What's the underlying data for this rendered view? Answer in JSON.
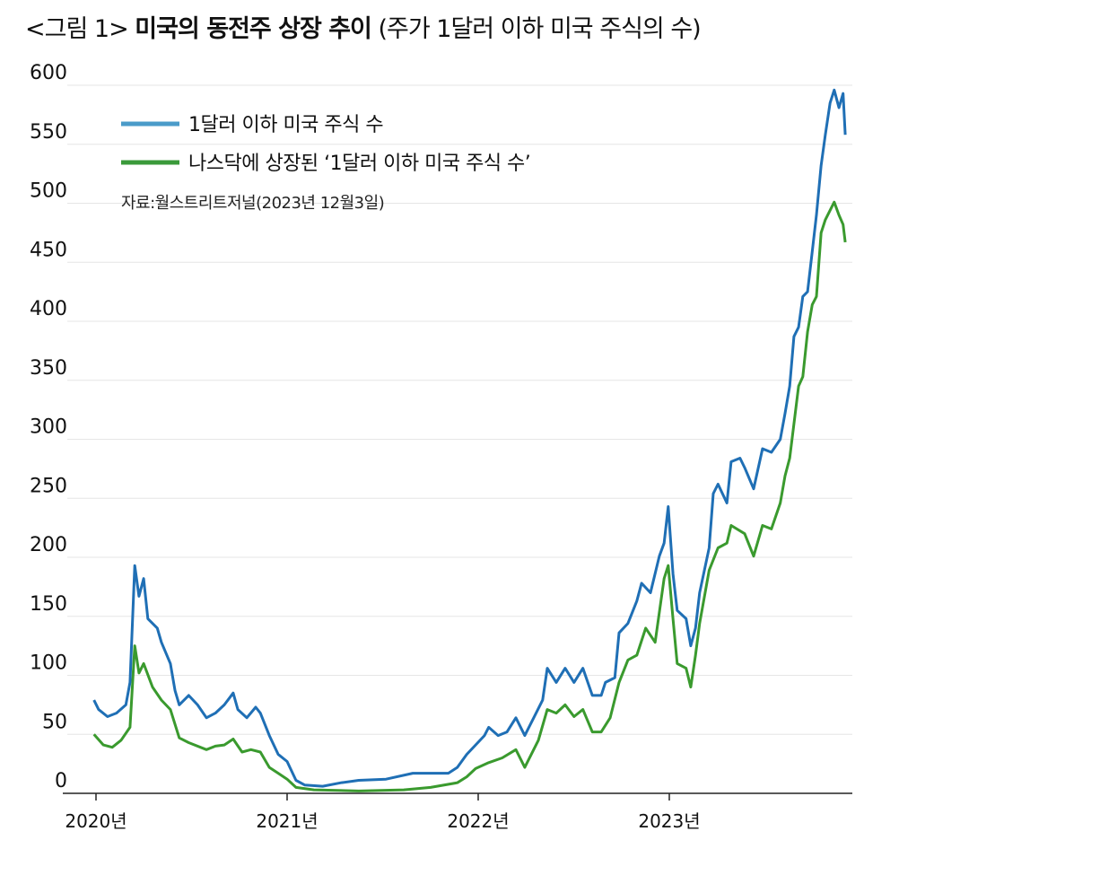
{
  "title": {
    "prefix": "<그림 1> ",
    "main": "미국의 동전주 상장 추이",
    "suffix": " (주가 1달러 이하 미국 주식의 수)"
  },
  "chart_data": {
    "type": "line",
    "title": "미국의 동전주 상장 추이",
    "subtitle": "(주가 1달러 이하 미국 주식의 수)",
    "source": "자료:월스트리트저널(2023년 12월3일)",
    "xlabel": "",
    "ylabel": "",
    "ylim": [
      0,
      600
    ],
    "yticks": [
      0,
      50,
      100,
      150,
      200,
      250,
      300,
      350,
      400,
      450,
      500,
      550,
      600
    ],
    "xticks": [
      {
        "value": "2020-01-01",
        "label": "2020년"
      },
      {
        "value": "2021-01-01",
        "label": "2021년"
      },
      {
        "value": "2022-01-01",
        "label": "2022년"
      },
      {
        "value": "2023-01-01",
        "label": "2023년"
      }
    ],
    "grid": "horizontal",
    "legend_placement": "top-left",
    "series": [
      {
        "name": "1달러 이하 미국 주식 수",
        "color": "#1f6fb5",
        "legend_color": "#4a9bc9",
        "points": [
          [
            "2019-12-28",
            79
          ],
          [
            "2020-01-06",
            71
          ],
          [
            "2020-01-23",
            65
          ],
          [
            "2020-02-09",
            68
          ],
          [
            "2020-02-27",
            75
          ],
          [
            "2020-03-06",
            94
          ],
          [
            "2020-03-15",
            193
          ],
          [
            "2020-03-23",
            167
          ],
          [
            "2020-04-01",
            182
          ],
          [
            "2020-04-09",
            148
          ],
          [
            "2020-04-27",
            140
          ],
          [
            "2020-05-05",
            128
          ],
          [
            "2020-05-22",
            110
          ],
          [
            "2020-05-31",
            87
          ],
          [
            "2020-06-08",
            75
          ],
          [
            "2020-06-26",
            83
          ],
          [
            "2020-07-13",
            75
          ],
          [
            "2020-07-30",
            64
          ],
          [
            "2020-08-16",
            68
          ],
          [
            "2020-09-02",
            75
          ],
          [
            "2020-09-19",
            85
          ],
          [
            "2020-09-28",
            71
          ],
          [
            "2020-10-15",
            64
          ],
          [
            "2020-11-01",
            73
          ],
          [
            "2020-11-10",
            68
          ],
          [
            "2020-11-27",
            49
          ],
          [
            "2020-12-14",
            33
          ],
          [
            "2021-01-01",
            27
          ],
          [
            "2021-01-18",
            11
          ],
          [
            "2021-02-04",
            7
          ],
          [
            "2021-03-10",
            6
          ],
          [
            "2021-04-14",
            9
          ],
          [
            "2021-05-18",
            11
          ],
          [
            "2021-07-09",
            12
          ],
          [
            "2021-08-29",
            17
          ],
          [
            "2021-11-05",
            17
          ],
          [
            "2021-11-22",
            22
          ],
          [
            "2021-12-10",
            33
          ],
          [
            "2021-12-27",
            41
          ],
          [
            "2022-01-13",
            49
          ],
          [
            "2022-01-21",
            56
          ],
          [
            "2022-02-08",
            49
          ],
          [
            "2022-02-25",
            52
          ],
          [
            "2022-03-14",
            64
          ],
          [
            "2022-03-31",
            49
          ],
          [
            "2022-04-17",
            64
          ],
          [
            "2022-05-04",
            79
          ],
          [
            "2022-05-13",
            106
          ],
          [
            "2022-05-30",
            94
          ],
          [
            "2022-06-16",
            106
          ],
          [
            "2022-07-03",
            94
          ],
          [
            "2022-07-20",
            106
          ],
          [
            "2022-08-07",
            83
          ],
          [
            "2022-08-24",
            83
          ],
          [
            "2022-09-01",
            94
          ],
          [
            "2022-09-19",
            98
          ],
          [
            "2022-09-27",
            136
          ],
          [
            "2022-10-14",
            144
          ],
          [
            "2022-10-31",
            163
          ],
          [
            "2022-11-09",
            178
          ],
          [
            "2022-11-26",
            170
          ],
          [
            "2022-12-13",
            201
          ],
          [
            "2022-12-22",
            212
          ],
          [
            "2022-12-30",
            243
          ],
          [
            "2023-01-08",
            186
          ],
          [
            "2023-01-16",
            155
          ],
          [
            "2023-02-02",
            148
          ],
          [
            "2023-02-11",
            125
          ],
          [
            "2023-02-20",
            140
          ],
          [
            "2023-02-28",
            170
          ],
          [
            "2023-03-18",
            208
          ],
          [
            "2023-03-26",
            254
          ],
          [
            "2023-04-04",
            262
          ],
          [
            "2023-04-21",
            246
          ],
          [
            "2023-04-29",
            281
          ],
          [
            "2023-05-16",
            284
          ],
          [
            "2023-05-25",
            276
          ],
          [
            "2023-06-11",
            258
          ],
          [
            "2023-06-28",
            292
          ],
          [
            "2023-07-15",
            289
          ],
          [
            "2023-08-01",
            300
          ],
          [
            "2023-08-10",
            322
          ],
          [
            "2023-08-19",
            345
          ],
          [
            "2023-08-27",
            387
          ],
          [
            "2023-09-05",
            395
          ],
          [
            "2023-09-13",
            421
          ],
          [
            "2023-09-22",
            425
          ],
          [
            "2023-10-01",
            459
          ],
          [
            "2023-10-09",
            490
          ],
          [
            "2023-10-18",
            532
          ],
          [
            "2023-10-26",
            558
          ],
          [
            "2023-11-04",
            585
          ],
          [
            "2023-11-12",
            596
          ],
          [
            "2023-11-21",
            581
          ],
          [
            "2023-11-29",
            593
          ],
          [
            "2023-12-03",
            558
          ]
        ]
      },
      {
        "name": "나스닥에 상장된 ‘1달러 이하 미국 주식 수’",
        "color": "#3a9a2e",
        "legend_color": "#3a9a3a",
        "points": [
          [
            "2019-12-28",
            50
          ],
          [
            "2020-01-15",
            41
          ],
          [
            "2020-02-01",
            39
          ],
          [
            "2020-02-18",
            45
          ],
          [
            "2020-03-06",
            56
          ],
          [
            "2020-03-15",
            125
          ],
          [
            "2020-03-23",
            102
          ],
          [
            "2020-04-01",
            110
          ],
          [
            "2020-04-18",
            90
          ],
          [
            "2020-05-05",
            79
          ],
          [
            "2020-05-22",
            71
          ],
          [
            "2020-06-08",
            47
          ],
          [
            "2020-06-26",
            43
          ],
          [
            "2020-07-30",
            37
          ],
          [
            "2020-08-16",
            40
          ],
          [
            "2020-09-02",
            41
          ],
          [
            "2020-09-19",
            46
          ],
          [
            "2020-10-06",
            35
          ],
          [
            "2020-10-23",
            37
          ],
          [
            "2020-11-10",
            35
          ],
          [
            "2020-11-27",
            22
          ],
          [
            "2020-12-14",
            17
          ],
          [
            "2021-01-01",
            12
          ],
          [
            "2021-01-18",
            5
          ],
          [
            "2021-02-21",
            3
          ],
          [
            "2021-05-18",
            2
          ],
          [
            "2021-08-12",
            3
          ],
          [
            "2021-10-02",
            5
          ],
          [
            "2021-11-22",
            9
          ],
          [
            "2021-12-10",
            14
          ],
          [
            "2021-12-27",
            21
          ],
          [
            "2022-01-21",
            26
          ],
          [
            "2022-02-16",
            30
          ],
          [
            "2022-03-14",
            37
          ],
          [
            "2022-03-31",
            22
          ],
          [
            "2022-04-26",
            45
          ],
          [
            "2022-05-13",
            71
          ],
          [
            "2022-05-30",
            68
          ],
          [
            "2022-06-16",
            75
          ],
          [
            "2022-07-03",
            65
          ],
          [
            "2022-07-20",
            71
          ],
          [
            "2022-08-07",
            52
          ],
          [
            "2022-08-24",
            52
          ],
          [
            "2022-09-10",
            64
          ],
          [
            "2022-09-27",
            94
          ],
          [
            "2022-10-14",
            113
          ],
          [
            "2022-10-31",
            117
          ],
          [
            "2022-11-17",
            140
          ],
          [
            "2022-12-05",
            128
          ],
          [
            "2022-12-22",
            182
          ],
          [
            "2022-12-30",
            193
          ],
          [
            "2023-01-08",
            148
          ],
          [
            "2023-01-16",
            110
          ],
          [
            "2023-02-02",
            106
          ],
          [
            "2023-02-11",
            90
          ],
          [
            "2023-02-20",
            117
          ],
          [
            "2023-02-28",
            144
          ],
          [
            "2023-03-18",
            189
          ],
          [
            "2023-04-04",
            208
          ],
          [
            "2023-04-21",
            212
          ],
          [
            "2023-04-29",
            227
          ],
          [
            "2023-05-25",
            220
          ],
          [
            "2023-06-11",
            201
          ],
          [
            "2023-06-28",
            227
          ],
          [
            "2023-07-15",
            224
          ],
          [
            "2023-08-01",
            246
          ],
          [
            "2023-08-10",
            269
          ],
          [
            "2023-08-19",
            284
          ],
          [
            "2023-09-05",
            345
          ],
          [
            "2023-09-13",
            353
          ],
          [
            "2023-09-22",
            391
          ],
          [
            "2023-10-01",
            414
          ],
          [
            "2023-10-09",
            421
          ],
          [
            "2023-10-18",
            475
          ],
          [
            "2023-10-26",
            486
          ],
          [
            "2023-11-12",
            501
          ],
          [
            "2023-11-21",
            490
          ],
          [
            "2023-11-29",
            482
          ],
          [
            "2023-12-03",
            467
          ]
        ]
      }
    ]
  }
}
